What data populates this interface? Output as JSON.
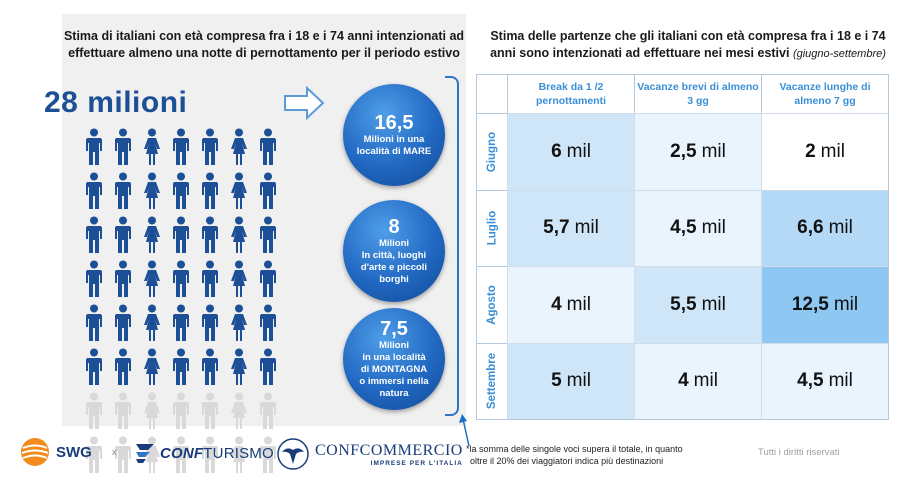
{
  "left": {
    "title_line1": "Stima di italiani con età compresa fra i 18 e i 74 anni intenzionati ad",
    "title_line2": "effettuare almeno una notte di pernottamento per il periodo estivo",
    "total": "28 milioni",
    "people": {
      "rows": 8,
      "cols": 7,
      "highlighted_rows": 6,
      "highlight_color": "#1c4f95",
      "muted_color": "#d9d9d9"
    },
    "circles": [
      {
        "number": "16,5",
        "lines": [
          "Milioni in una",
          "località di MARE"
        ]
      },
      {
        "number": "8",
        "lines": [
          "Milioni",
          "In città, luoghi",
          "d'arte e piccoli",
          "borghi"
        ]
      },
      {
        "number": "7,5",
        "lines": [
          "Milioni",
          "in una località",
          "di MONTAGNA",
          "o immersi nella",
          "natura"
        ]
      }
    ]
  },
  "right": {
    "title_line1": "Stima delle partenze che gli italiani con età compresa fra i 18 e i 74",
    "title_line2": "anni sono intenzionati ad effettuare nei mesi estivi",
    "title_note": "(giugno-settembre)"
  },
  "chart_data": {
    "type": "table",
    "columns": [
      "Break da 1 /2 pernottamenti",
      "Vacanze brevi di almeno 3 gg",
      "Vacanze lunghe di almeno 7 gg"
    ],
    "rows": [
      "Giugno",
      "Luglio",
      "Agosto",
      "Settembre"
    ],
    "unit": "mil",
    "values": [
      [
        6,
        2.5,
        2
      ],
      [
        5.7,
        4.5,
        6.6
      ],
      [
        4,
        5.5,
        12.5
      ],
      [
        5,
        4,
        4.5
      ]
    ],
    "display": [
      [
        "6",
        "2,5",
        "2"
      ],
      [
        "5,7",
        "4,5",
        "6,6"
      ],
      [
        "4",
        "5,5",
        "12,5"
      ],
      [
        "5",
        "4",
        "4,5"
      ]
    ],
    "colors": [
      "#ffffff",
      "#eaf4fc",
      "#cfe6f8",
      "#b3d9f6",
      "#8ec8f2"
    ]
  },
  "footer": {
    "swg": "SWG",
    "x": "x",
    "confturismo_a": "CONF",
    "confturismo_b": "TURISMO",
    "confcommercio": "CONFCOMMERCIO",
    "confcommercio_sub": "IMPRESE PER L'ITALIA",
    "footnote_line1": "*la somma delle singole voci supera il totale, in quanto",
    "footnote_line2": "oltre il 20% dei viaggiatori indica più destinazioni",
    "rights": "Tutti i diritti riservati"
  }
}
